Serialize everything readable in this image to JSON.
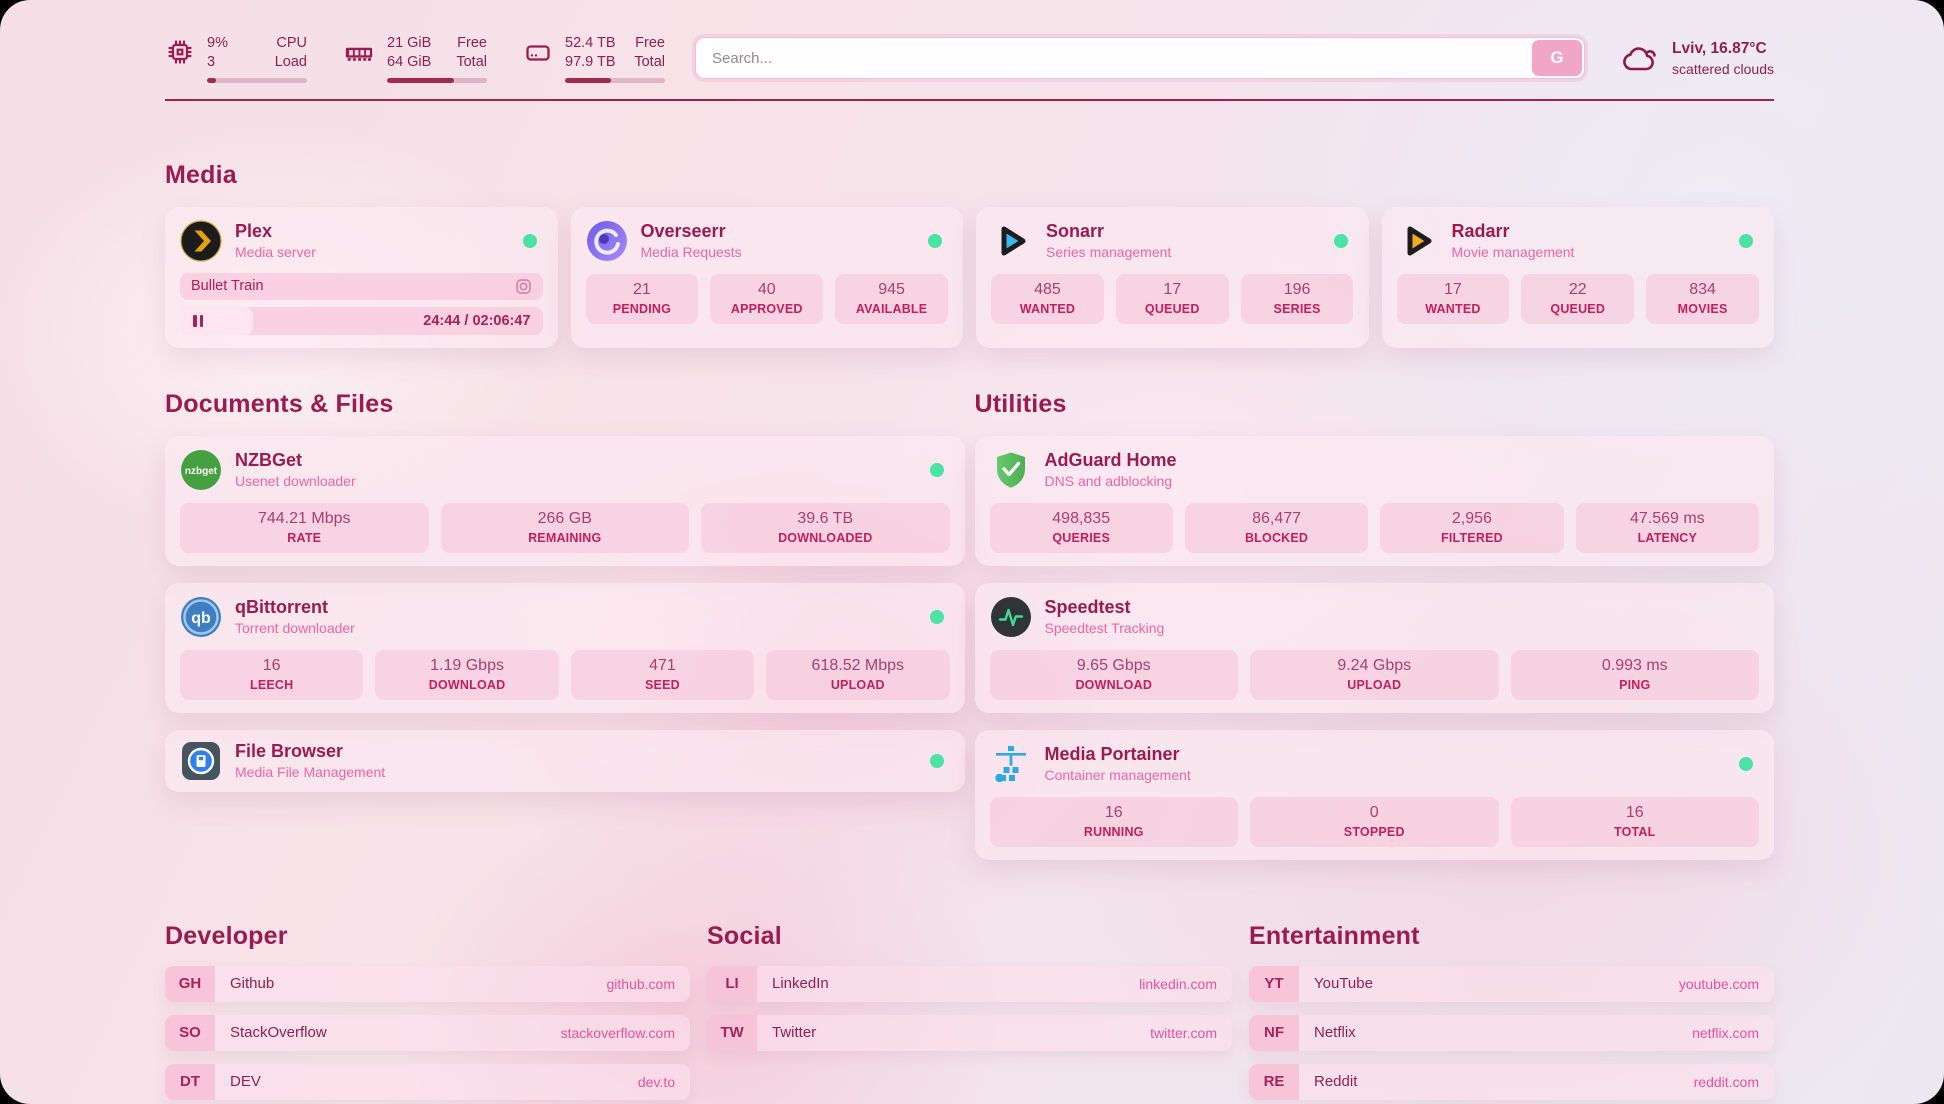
{
  "header": {
    "cpu": {
      "percent": "9%",
      "cores": "3",
      "label_top": "CPU",
      "label_bottom": "Load",
      "progress_pct": 9
    },
    "ram": {
      "free": "21 GiB",
      "total": "64 GiB",
      "label_top": "Free",
      "label_bottom": "Total",
      "progress_pct": 67
    },
    "disk": {
      "free": "52.4 TB",
      "total": "97.9 TB",
      "label_top": "Free",
      "label_bottom": "Total",
      "progress_pct": 46
    },
    "search": {
      "placeholder": "Search...",
      "button_label": "G"
    },
    "weather": {
      "location": "Lviv, 16.87°C",
      "condition": "scattered clouds"
    }
  },
  "sections": {
    "media": "Media",
    "documents": "Documents & Files",
    "utilities": "Utilities",
    "developer": "Developer",
    "social": "Social",
    "entertainment": "Entertainment"
  },
  "apps": {
    "plex": {
      "title": "Plex",
      "subtitle": "Media server",
      "status": "online",
      "now_playing": {
        "title": "Bullet Train",
        "time_display": "24:44 / 02:06:47",
        "progress_pct": 20
      }
    },
    "overseerr": {
      "title": "Overseerr",
      "subtitle": "Media Requests",
      "status": "online",
      "stats": [
        {
          "value": "21",
          "label": "PENDING"
        },
        {
          "value": "40",
          "label": "APPROVED"
        },
        {
          "value": "945",
          "label": "AVAILABLE"
        }
      ]
    },
    "sonarr": {
      "title": "Sonarr",
      "subtitle": "Series management",
      "status": "online",
      "stats": [
        {
          "value": "485",
          "label": "WANTED"
        },
        {
          "value": "17",
          "label": "QUEUED"
        },
        {
          "value": "196",
          "label": "SERIES"
        }
      ]
    },
    "radarr": {
      "title": "Radarr",
      "subtitle": "Movie management",
      "status": "online",
      "stats": [
        {
          "value": "17",
          "label": "WANTED"
        },
        {
          "value": "22",
          "label": "QUEUED"
        },
        {
          "value": "834",
          "label": "MOVIES"
        }
      ]
    },
    "nzbget": {
      "title": "NZBGet",
      "subtitle": "Usenet downloader",
      "status": "online",
      "stats": [
        {
          "value": "744.21 Mbps",
          "label": "RATE"
        },
        {
          "value": "266 GB",
          "label": "REMAINING"
        },
        {
          "value": "39.6 TB",
          "label": "DOWNLOADED"
        }
      ]
    },
    "qbittorrent": {
      "title": "qBittorrent",
      "subtitle": "Torrent downloader",
      "status": "online",
      "stats": [
        {
          "value": "16",
          "label": "LEECH"
        },
        {
          "value": "1.19 Gbps",
          "label": "DOWNLOAD"
        },
        {
          "value": "471",
          "label": "SEED"
        },
        {
          "value": "618.52 Mbps",
          "label": "UPLOAD"
        }
      ]
    },
    "filebrowser": {
      "title": "File Browser",
      "subtitle": "Media File Management",
      "status": "online"
    },
    "adguard": {
      "title": "AdGuard Home",
      "subtitle": "DNS and adblocking",
      "stats": [
        {
          "value": "498,835",
          "label": "QUERIES"
        },
        {
          "value": "86,477",
          "label": "BLOCKED"
        },
        {
          "value": "2,956",
          "label": "FILTERED"
        },
        {
          "value": "47.569 ms",
          "label": "LATENCY"
        }
      ]
    },
    "speedtest": {
      "title": "Speedtest",
      "subtitle": "Speedtest Tracking",
      "stats": [
        {
          "value": "9.65 Gbps",
          "label": "DOWNLOAD"
        },
        {
          "value": "9.24 Gbps",
          "label": "UPLOAD"
        },
        {
          "value": "0.993 ms",
          "label": "PING"
        }
      ]
    },
    "portainer": {
      "title": "Media Portainer",
      "subtitle": "Container management",
      "status": "online",
      "stats": [
        {
          "value": "16",
          "label": "RUNNING"
        },
        {
          "value": "0",
          "label": "STOPPED"
        },
        {
          "value": "16",
          "label": "TOTAL"
        }
      ]
    }
  },
  "links": {
    "developer": [
      {
        "abbr": "GH",
        "name": "Github",
        "url": "github.com"
      },
      {
        "abbr": "SO",
        "name": "StackOverflow",
        "url": "stackoverflow.com"
      },
      {
        "abbr": "DT",
        "name": "DEV",
        "url": "dev.to"
      }
    ],
    "social": [
      {
        "abbr": "LI",
        "name": "LinkedIn",
        "url": "linkedin.com"
      },
      {
        "abbr": "TW",
        "name": "Twitter",
        "url": "twitter.com"
      }
    ],
    "entertainment": [
      {
        "abbr": "YT",
        "name": "YouTube",
        "url": "youtube.com"
      },
      {
        "abbr": "NF",
        "name": "Netflix",
        "url": "netflix.com"
      },
      {
        "abbr": "RE",
        "name": "Reddit",
        "url": "reddit.com"
      }
    ]
  },
  "colors": {
    "accent": "#9c1b4e",
    "status_online": "#4be3a3"
  }
}
